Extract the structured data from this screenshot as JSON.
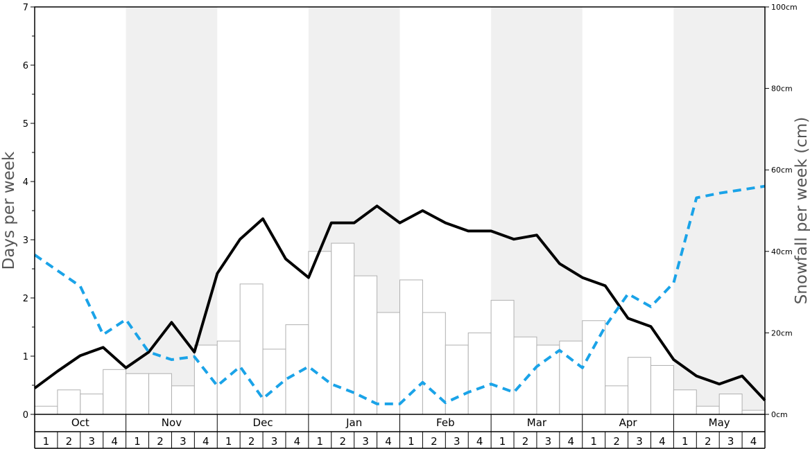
{
  "chart_data": {
    "type": "bar",
    "ylabel_left": "Days per week",
    "ylabel_right": "Snowfall per week (cm)",
    "ylim_left": [
      0,
      7
    ],
    "ylim_right": [
      0,
      100
    ],
    "left_ticks": [
      "0",
      "1",
      "2",
      "3",
      "4",
      "5",
      "6",
      "7"
    ],
    "right_ticks": [
      "0cm",
      "20cm",
      "40cm",
      "60cm",
      "80cm",
      "100cm"
    ],
    "months": [
      "Oct",
      "Nov",
      "Dec",
      "Jan",
      "Feb",
      "Mar",
      "Apr",
      "May"
    ],
    "week_labels": [
      "1",
      "2",
      "3",
      "4"
    ],
    "shaded_months": [
      "Nov",
      "Jan",
      "Mar",
      "May"
    ],
    "colors": {
      "bar_fill": "#ffffff",
      "bar_stroke": "#b0b0b0",
      "solid_line": "#000000",
      "dashed_line": "#1aa3e8",
      "shade": "#f0f0f0"
    },
    "series": [
      {
        "type": "bar",
        "axis": "right",
        "values": [
          2,
          6,
          5,
          11,
          10,
          10,
          7,
          17,
          18,
          32,
          16,
          22,
          40,
          42,
          34,
          25,
          33,
          25,
          17,
          20,
          28,
          19,
          17,
          18,
          23,
          7,
          14,
          12,
          6,
          2,
          5,
          1
        ]
      },
      {
        "type": "line",
        "style": "solid",
        "axis": "left",
        "values": [
          0.45,
          0.74,
          1.01,
          1.15,
          0.8,
          1.07,
          1.58,
          1.07,
          2.42,
          3.01,
          3.36,
          2.67,
          2.35,
          3.29,
          3.29,
          3.58,
          3.29,
          3.5,
          3.29,
          3.15,
          3.15,
          3.01,
          3.08,
          2.59,
          2.35,
          2.21,
          1.65,
          1.51,
          0.94,
          0.66,
          0.52,
          0.66,
          0.24
        ]
      },
      {
        "type": "line",
        "style": "dashed",
        "axis": "left",
        "values": [
          2.74,
          2.47,
          2.2,
          1.37,
          1.63,
          1.07,
          0.94,
          0.99,
          0.49,
          0.82,
          0.27,
          0.6,
          0.82,
          0.52,
          0.37,
          0.18,
          0.18,
          0.55,
          0.2,
          0.38,
          0.52,
          0.38,
          0.82,
          1.1,
          0.8,
          1.51,
          2.07,
          1.85,
          2.26,
          3.72,
          3.8,
          3.86,
          3.92
        ]
      }
    ]
  }
}
